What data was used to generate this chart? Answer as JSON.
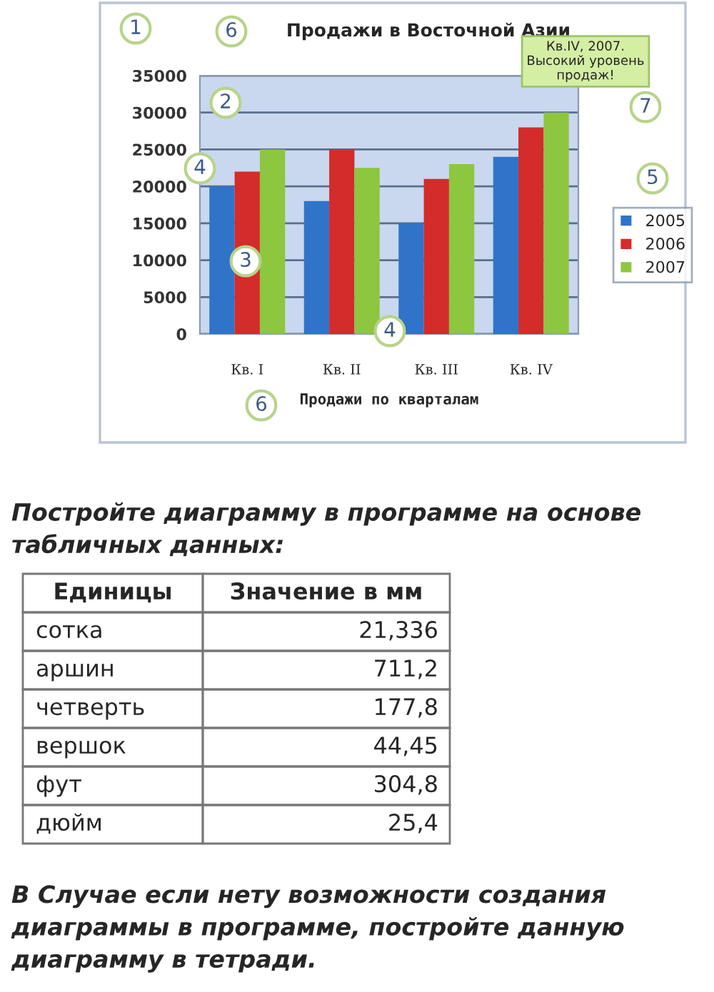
{
  "chart_data": {
    "type": "bar",
    "title": "Продажи в Восточной Азии",
    "xlabel": "Продажи по кварталам",
    "categories": [
      "Кв. I",
      "Кв. II",
      "Кв. III",
      "Кв. IV"
    ],
    "series": [
      {
        "name": "2005",
        "color": "#2f74c9",
        "values": [
          20000,
          18000,
          15000,
          24000
        ]
      },
      {
        "name": "2006",
        "color": "#d42b2b",
        "values": [
          22000,
          25000,
          21000,
          28000
        ]
      },
      {
        "name": "2007",
        "color": "#8dc63f",
        "values": [
          25000,
          22500,
          23000,
          30000
        ]
      }
    ],
    "ylim": [
      0,
      35000
    ],
    "yticks": [
      0,
      5000,
      10000,
      15000,
      20000,
      25000,
      30000,
      35000
    ],
    "grid": "y",
    "legend": "right",
    "annotations": [
      "Кв.IV, 2007.\nВысокий уровень\nпродаж!",
      "1",
      "6",
      "2",
      "4",
      "3",
      "4",
      "5",
      "6",
      "7",
      "Постройте диаграмму в программе на основе табличных данных:",
      "Единицы",
      "Значение в мм",
      "сотка",
      "21,336",
      "аршин",
      "711,2",
      "четверть",
      "177,8",
      "вершок",
      "44,45",
      "фут",
      "304,8",
      "дюйм",
      "25,4",
      "В Случае если нету возможности создания диаграммы в программе, постройте данную диаграмму в тетради."
    ]
  }
}
